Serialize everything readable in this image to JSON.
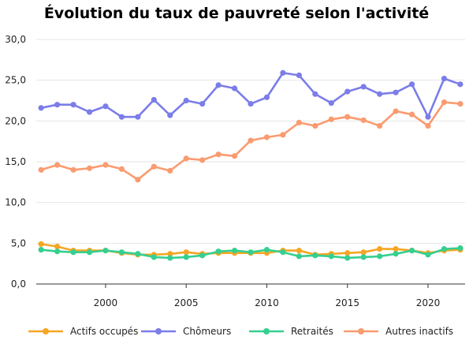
{
  "chart_data": {
    "type": "line",
    "title": "Évolution du taux de pauvreté selon l'activité",
    "xlabel": "",
    "ylabel": "",
    "x": [
      1996,
      1997,
      1998,
      1999,
      2000,
      2001,
      2002,
      2003,
      2004,
      2005,
      2006,
      2007,
      2008,
      2009,
      2010,
      2011,
      2012,
      2013,
      2014,
      2015,
      2016,
      2017,
      2018,
      2019,
      2020,
      2021,
      2022
    ],
    "xlim": [
      1995.7,
      2022.3
    ],
    "ylim": [
      0,
      30
    ],
    "x_ticks": [
      2000,
      2005,
      2010,
      2015,
      2020
    ],
    "x_tick_labels": [
      "2000",
      "2005",
      "2010",
      "2015",
      "2020"
    ],
    "y_ticks": [
      0,
      5,
      10,
      15,
      20,
      25,
      30
    ],
    "y_tick_labels": [
      "0,0",
      "5,0",
      "10,0",
      "15,0",
      "20,0",
      "25,0",
      "30,0"
    ],
    "grid": "horizontal",
    "legend_position": "bottom",
    "series": [
      {
        "name": "Actifs occupés",
        "color": "#f5a623",
        "values": [
          4.9,
          4.6,
          4.1,
          4.1,
          4.1,
          3.8,
          3.6,
          3.6,
          3.7,
          3.9,
          3.7,
          3.8,
          3.8,
          3.8,
          3.8,
          4.1,
          4.1,
          3.6,
          3.7,
          3.8,
          3.9,
          4.3,
          4.3,
          4.1,
          3.8,
          4.1,
          4.2
        ]
      },
      {
        "name": "Chômeurs",
        "color": "#7b7de8",
        "values": [
          21.6,
          22.0,
          22.0,
          21.1,
          21.8,
          20.5,
          20.5,
          22.6,
          20.7,
          22.5,
          22.1,
          24.4,
          24.0,
          22.1,
          22.9,
          25.9,
          25.6,
          23.3,
          22.2,
          23.6,
          24.2,
          23.3,
          23.5,
          24.5,
          20.5,
          25.2,
          24.5
        ]
      },
      {
        "name": "Retraités",
        "color": "#36cf8f",
        "values": [
          4.2,
          4.0,
          3.9,
          3.9,
          4.1,
          3.9,
          3.7,
          3.3,
          3.2,
          3.3,
          3.5,
          4.0,
          4.1,
          3.9,
          4.2,
          3.9,
          3.4,
          3.5,
          3.4,
          3.2,
          3.3,
          3.4,
          3.7,
          4.1,
          3.6,
          4.3,
          4.4
        ]
      },
      {
        "name": "Autres inactifs",
        "color": "#fa9b70",
        "values": [
          14.0,
          14.6,
          14.0,
          14.2,
          14.6,
          14.1,
          12.8,
          14.4,
          13.9,
          15.4,
          15.2,
          15.9,
          15.7,
          17.6,
          18.0,
          18.3,
          19.8,
          19.4,
          20.2,
          20.5,
          20.1,
          19.4,
          21.2,
          20.8,
          19.4,
          22.3,
          22.1
        ]
      }
    ]
  }
}
